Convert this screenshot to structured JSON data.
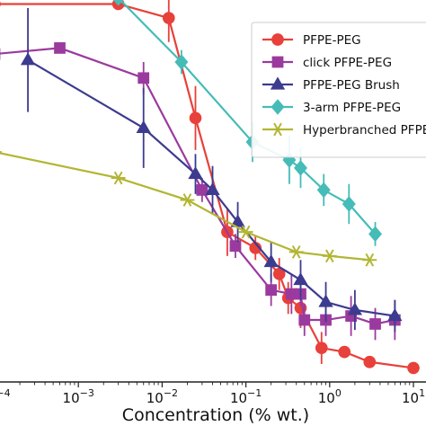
{
  "chart_data": {
    "type": "line",
    "xlabel": "Concentration (% wt.)",
    "ylabel": "",
    "xscale": "log",
    "xlim_log10": [
      -4.15,
      1.15
    ],
    "ylim": [
      0,
      1
    ],
    "x_ticks": [
      {
        "exp": -4,
        "base": "10",
        "exponent": "−4"
      },
      {
        "exp": -3,
        "base": "10",
        "exponent": "−3"
      },
      {
        "exp": -2,
        "base": "10",
        "exponent": "−2"
      },
      {
        "exp": -1,
        "base": "10",
        "exponent": "−1"
      },
      {
        "exp": 0,
        "base": "10",
        "exponent": "0"
      },
      {
        "exp": 1,
        "base": "10",
        "exponent": "1"
      }
    ],
    "grid": false,
    "legend_position": "top-right",
    "series": [
      {
        "name": "PFPE-PEG",
        "color": "#e8403a",
        "marker": "circle",
        "x": [
          0.0001,
          0.003,
          0.012,
          0.025,
          0.06,
          0.13,
          0.25,
          0.32,
          0.45,
          0.8,
          1.5,
          3.0,
          10.0
        ],
        "y": [
          0.945,
          0.945,
          0.91,
          0.66,
          0.375,
          0.335,
          0.27,
          0.21,
          0.185,
          0.085,
          0.075,
          0.05,
          0.035
        ],
        "err": [
          0,
          0,
          0.06,
          0.08,
          0.06,
          0.03,
          0.04,
          0.04,
          0.05,
          0.04,
          0,
          0,
          0
        ]
      },
      {
        "name": "click PFPE-PEG",
        "color": "#9a3a9e",
        "marker": "square",
        "x": [
          0.0001,
          0.0006,
          0.006,
          0.03,
          0.075,
          0.2,
          0.35,
          0.45,
          0.5,
          0.9,
          1.8,
          3.5,
          6.0
        ],
        "y": [
          0.82,
          0.835,
          0.76,
          0.48,
          0.34,
          0.23,
          0.22,
          0.22,
          0.155,
          0.155,
          0.165,
          0.145,
          0.155
        ],
        "err": [
          0,
          0,
          0.04,
          0.03,
          0.03,
          0.04,
          0.05,
          0.03,
          0.04,
          0.04,
          0.05,
          0.04,
          0.05
        ]
      },
      {
        "name": "PFPE-PEG Brush",
        "color": "#3c3b8f",
        "marker": "triangle",
        "x": [
          0.00025,
          0.006,
          0.025,
          0.04,
          0.08,
          0.2,
          0.45,
          0.9,
          2.0,
          6.0
        ],
        "y": [
          0.805,
          0.635,
          0.52,
          0.48,
          0.4,
          0.3,
          0.255,
          0.2,
          0.18,
          0.165
        ],
        "err": [
          0.13,
          0.1,
          0.05,
          0.06,
          0.05,
          0.05,
          0.05,
          0.05,
          0.05,
          0.04
        ]
      },
      {
        "name": "3-arm PFPE-PEG",
        "color": "#45bcb8",
        "marker": "diamond",
        "x": [
          0.0001,
          0.003,
          0.017,
          0.12,
          0.33,
          0.45,
          0.85,
          1.7,
          3.5
        ],
        "y": [
          0.965,
          0.96,
          0.8,
          0.6,
          0.555,
          0.535,
          0.48,
          0.445,
          0.37
        ],
        "err": [
          0,
          0,
          0.03,
          0.05,
          0.06,
          0.05,
          0.04,
          0.05,
          0.03
        ]
      },
      {
        "name": "Hyperbranched PFPE-PEG",
        "color": "#b2b632",
        "marker": "star",
        "x": [
          0.0001,
          0.003,
          0.02,
          0.1,
          0.4,
          1.0,
          3.0
        ],
        "y": [
          0.575,
          0.51,
          0.455,
          0.375,
          0.325,
          0.315,
          0.305
        ],
        "err": [
          0.04,
          0,
          0,
          0,
          0,
          0,
          0
        ]
      }
    ]
  }
}
